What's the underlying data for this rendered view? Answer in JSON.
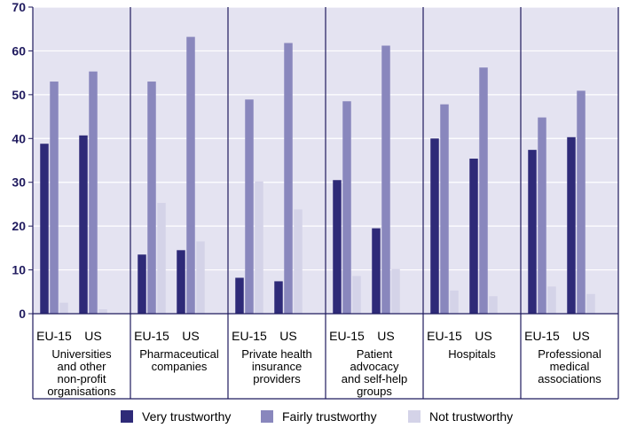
{
  "chart_data": {
    "type": "bar",
    "ylim": [
      0,
      70
    ],
    "yticks": [
      0,
      10,
      20,
      30,
      40,
      50,
      60,
      70
    ],
    "grid": true,
    "legend_position": "bottom",
    "subcategories": [
      "EU-15",
      "US"
    ],
    "groups": [
      {
        "label_lines": [
          "Universities",
          "and other",
          "non-profit",
          "organisations"
        ]
      },
      {
        "label_lines": [
          "Pharmaceutical",
          "companies"
        ]
      },
      {
        "label_lines": [
          "Private health",
          "insurance",
          "providers"
        ]
      },
      {
        "label_lines": [
          "Patient",
          "advocacy",
          "and self-help",
          "groups"
        ]
      },
      {
        "label_lines": [
          "Hospitals"
        ]
      },
      {
        "label_lines": [
          "Professional",
          "medical",
          "associations"
        ]
      }
    ],
    "series": [
      {
        "name": "Very trustworthy",
        "color": "#2e2a78",
        "values": [
          [
            38.8,
            40.7
          ],
          [
            13.5,
            14.5
          ],
          [
            8.2,
            7.4
          ],
          [
            30.5,
            19.5
          ],
          [
            40.0,
            35.4
          ],
          [
            37.4,
            40.3
          ]
        ]
      },
      {
        "name": "Fairly trustworthy",
        "color": "#8987bd",
        "values": [
          [
            53.0,
            55.3
          ],
          [
            53.0,
            63.2
          ],
          [
            48.9,
            61.8
          ],
          [
            48.5,
            61.2
          ],
          [
            47.8,
            56.2
          ],
          [
            44.8,
            50.9
          ]
        ]
      },
      {
        "name": "Not trustworthy",
        "color": "#d4d3e8",
        "values": [
          [
            2.5,
            1.0
          ],
          [
            25.3,
            16.5
          ],
          [
            30.2,
            23.8
          ],
          [
            8.6,
            10.2
          ],
          [
            5.3,
            4.0
          ],
          [
            6.2,
            4.5
          ]
        ]
      }
    ],
    "colors": {
      "plot_background": "#e4e3f1",
      "grid": "#ffffff",
      "axis": "#1f1a5e"
    }
  }
}
